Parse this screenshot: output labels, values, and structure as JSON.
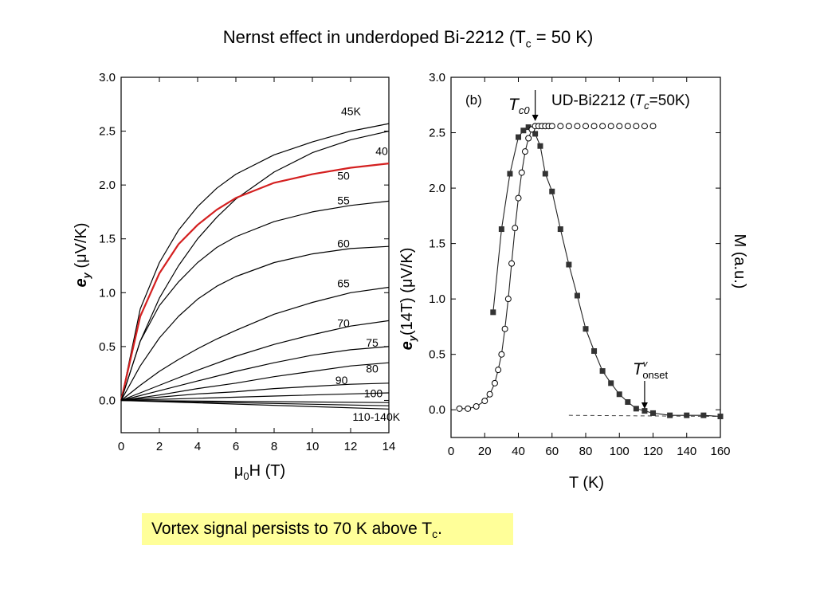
{
  "slide": {
    "title_main": "Nernst effect in underdoped Bi-2212 (T",
    "title_sub": "c",
    "title_tail": " = 50 K)",
    "caption_main": "Vortex signal persists to 70 K above T",
    "caption_sub": "c",
    "caption_tail": "."
  },
  "chart_data": [
    {
      "type": "line",
      "xlabel_pre": "μ",
      "xlabel_sub": "0",
      "xlabel_post": "H (T)",
      "ylabel_bold": "e",
      "ylabel_sub": "y",
      "ylabel_post": " (μV/K)",
      "xlim": [
        0,
        14
      ],
      "ylim": [
        -0.3,
        3.0
      ],
      "x_ticks": [
        "0",
        "2",
        "4",
        "6",
        "8",
        "10",
        "12",
        "14"
      ],
      "y_ticks": [
        "0.0",
        "0.5",
        "1.0",
        "1.5",
        "2.0",
        "2.5",
        "3.0"
      ],
      "highlight_color": "#d42020",
      "series": [
        {
          "name": "45K",
          "color": "#000000",
          "values": [
            [
              0,
              0
            ],
            [
              1,
              0.85
            ],
            [
              2,
              1.28
            ],
            [
              3,
              1.58
            ],
            [
              4,
              1.8
            ],
            [
              5,
              1.97
            ],
            [
              6,
              2.1
            ],
            [
              8,
              2.28
            ],
            [
              10,
              2.4
            ],
            [
              12,
              2.5
            ],
            [
              14,
              2.57
            ]
          ]
        },
        {
          "name": "40",
          "color": "#000000",
          "values": [
            [
              0,
              0
            ],
            [
              1,
              0.55
            ],
            [
              2,
              0.95
            ],
            [
              3,
              1.25
            ],
            [
              4,
              1.5
            ],
            [
              5,
              1.7
            ],
            [
              6,
              1.87
            ],
            [
              8,
              2.12
            ],
            [
              10,
              2.3
            ],
            [
              12,
              2.42
            ],
            [
              14,
              2.5
            ]
          ]
        },
        {
          "name": "50",
          "color": "#d42020",
          "values": [
            [
              0,
              0
            ],
            [
              1,
              0.78
            ],
            [
              2,
              1.18
            ],
            [
              3,
              1.45
            ],
            [
              4,
              1.63
            ],
            [
              5,
              1.77
            ],
            [
              6,
              1.88
            ],
            [
              8,
              2.02
            ],
            [
              10,
              2.1
            ],
            [
              12,
              2.16
            ],
            [
              14,
              2.2
            ]
          ]
        },
        {
          "name": "55",
          "color": "#000000",
          "values": [
            [
              0,
              0
            ],
            [
              1,
              0.55
            ],
            [
              2,
              0.88
            ],
            [
              3,
              1.1
            ],
            [
              4,
              1.28
            ],
            [
              5,
              1.42
            ],
            [
              6,
              1.52
            ],
            [
              8,
              1.66
            ],
            [
              10,
              1.75
            ],
            [
              12,
              1.81
            ],
            [
              14,
              1.85
            ]
          ]
        },
        {
          "name": "60",
          "color": "#000000",
          "values": [
            [
              0,
              0
            ],
            [
              1,
              0.32
            ],
            [
              2,
              0.58
            ],
            [
              3,
              0.78
            ],
            [
              4,
              0.94
            ],
            [
              5,
              1.06
            ],
            [
              6,
              1.15
            ],
            [
              8,
              1.28
            ],
            [
              10,
              1.36
            ],
            [
              12,
              1.41
            ],
            [
              14,
              1.43
            ]
          ]
        },
        {
          "name": "65",
          "color": "#000000",
          "values": [
            [
              0,
              0
            ],
            [
              1,
              0.14
            ],
            [
              2,
              0.27
            ],
            [
              3,
              0.38
            ],
            [
              4,
              0.48
            ],
            [
              5,
              0.57
            ],
            [
              6,
              0.65
            ],
            [
              8,
              0.8
            ],
            [
              10,
              0.91
            ],
            [
              12,
              1.0
            ],
            [
              14,
              1.05
            ]
          ]
        },
        {
          "name": "70",
          "color": "#000000",
          "values": [
            [
              0,
              0
            ],
            [
              2,
              0.14
            ],
            [
              4,
              0.28
            ],
            [
              6,
              0.41
            ],
            [
              8,
              0.52
            ],
            [
              10,
              0.61
            ],
            [
              12,
              0.69
            ],
            [
              14,
              0.74
            ]
          ]
        },
        {
          "name": "75",
          "color": "#000000",
          "values": [
            [
              0,
              0
            ],
            [
              2,
              0.09
            ],
            [
              4,
              0.18
            ],
            [
              6,
              0.27
            ],
            [
              8,
              0.35
            ],
            [
              10,
              0.42
            ],
            [
              12,
              0.47
            ],
            [
              14,
              0.5
            ]
          ]
        },
        {
          "name": "80",
          "color": "#000000",
          "values": [
            [
              0,
              0
            ],
            [
              2,
              0.05
            ],
            [
              4,
              0.11
            ],
            [
              6,
              0.16
            ],
            [
              8,
              0.22
            ],
            [
              10,
              0.27
            ],
            [
              12,
              0.32
            ],
            [
              14,
              0.35
            ]
          ]
        },
        {
          "name": "90",
          "color": "#000000",
          "values": [
            [
              0,
              0
            ],
            [
              2,
              0.03
            ],
            [
              4,
              0.06
            ],
            [
              6,
              0.08
            ],
            [
              8,
              0.11
            ],
            [
              10,
              0.13
            ],
            [
              12,
              0.15
            ],
            [
              14,
              0.16
            ]
          ]
        },
        {
          "name": "100",
          "color": "#000000",
          "values": [
            [
              0,
              0
            ],
            [
              4,
              0.02
            ],
            [
              8,
              0.04
            ],
            [
              12,
              0.06
            ],
            [
              14,
              0.07
            ]
          ]
        },
        {
          "name": "",
          "color": "#000000",
          "values": [
            [
              0,
              0
            ],
            [
              14,
              -0.02
            ]
          ]
        },
        {
          "name": "",
          "color": "#000000",
          "values": [
            [
              0,
              0
            ],
            [
              14,
              -0.05
            ]
          ]
        },
        {
          "name": "110-140K",
          "color": "#000000",
          "values": [
            [
              0,
              0
            ],
            [
              14,
              -0.08
            ]
          ]
        }
      ],
      "curve_labels": [
        {
          "text": "45K",
          "x": 11.5,
          "y": 2.65
        },
        {
          "text": "40",
          "x": 13.3,
          "y": 2.28
        },
        {
          "text": "50",
          "x": 11.3,
          "y": 2.05
        },
        {
          "text": "55",
          "x": 11.3,
          "y": 1.82
        },
        {
          "text": "60",
          "x": 11.3,
          "y": 1.42
        },
        {
          "text": "65",
          "x": 11.3,
          "y": 1.05
        },
        {
          "text": "70",
          "x": 11.3,
          "y": 0.68
        },
        {
          "text": "75",
          "x": 12.8,
          "y": 0.5
        },
        {
          "text": "80",
          "x": 12.8,
          "y": 0.26
        },
        {
          "text": "90",
          "x": 11.2,
          "y": 0.15
        },
        {
          "text": "100",
          "x": 12.7,
          "y": 0.03
        },
        {
          "text": "110-140K",
          "x": 12.1,
          "y": -0.19
        }
      ]
    },
    {
      "type": "scatter",
      "xlabel": "T (K)",
      "ylabel_bold": "e",
      "ylabel_sub": "y",
      "ylabel_post": "(14T) (μV/K)",
      "ylabel_right": "M (a.u.)",
      "xlim": [
        0,
        160
      ],
      "ylim": [
        -0.25,
        3.0
      ],
      "x_ticks": [
        "0",
        "20",
        "40",
        "60",
        "80",
        "100",
        "120",
        "140",
        "160"
      ],
      "y_ticks": [
        "0.0",
        "0.5",
        "1.0",
        "1.5",
        "2.0",
        "2.5",
        "3.0"
      ],
      "panel_label": "(b)",
      "legend_main": "UD-Bi2212 (",
      "legend_T": "T",
      "legend_sub": "c",
      "legend_tail": "=50K)",
      "tc0_T": "T",
      "tc0_sub": "c0",
      "tc0_x": 50,
      "tonset_T": "T",
      "tonset_sup": "v",
      "tonset_sub": "onset",
      "tonset_x": 115,
      "baseline": [
        [
          70,
          -0.05
        ],
        [
          160,
          -0.06
        ]
      ],
      "series": [
        {
          "name": "ey",
          "marker": "square",
          "color": "#333333",
          "values": [
            [
              25,
              0.88
            ],
            [
              30,
              1.63
            ],
            [
              35,
              2.13
            ],
            [
              40,
              2.46
            ],
            [
              43,
              2.52
            ],
            [
              46,
              2.55
            ],
            [
              50,
              2.49
            ],
            [
              53,
              2.38
            ],
            [
              56,
              2.13
            ],
            [
              60,
              1.97
            ],
            [
              65,
              1.63
            ],
            [
              70,
              1.31
            ],
            [
              75,
              1.03
            ],
            [
              80,
              0.73
            ],
            [
              85,
              0.53
            ],
            [
              90,
              0.35
            ],
            [
              95,
              0.24
            ],
            [
              100,
              0.14
            ],
            [
              105,
              0.07
            ],
            [
              110,
              0.01
            ],
            [
              115,
              -0.01
            ],
            [
              120,
              -0.03
            ],
            [
              130,
              -0.05
            ],
            [
              140,
              -0.05
            ],
            [
              150,
              -0.05
            ],
            [
              160,
              -0.06
            ]
          ]
        },
        {
          "name": "M",
          "marker": "circle",
          "color": "#000000",
          "values": [
            [
              5,
              0.01
            ],
            [
              10,
              0.01
            ],
            [
              15,
              0.03
            ],
            [
              20,
              0.08
            ],
            [
              23,
              0.14
            ],
            [
              26,
              0.24
            ],
            [
              28,
              0.36
            ],
            [
              30,
              0.5
            ],
            [
              32,
              0.73
            ],
            [
              34,
              1.0
            ],
            [
              36,
              1.32
            ],
            [
              38,
              1.64
            ],
            [
              40,
              1.91
            ],
            [
              42,
              2.14
            ],
            [
              44,
              2.33
            ],
            [
              46,
              2.45
            ],
            [
              48,
              2.53
            ],
            [
              50,
              2.56
            ],
            [
              52,
              2.56
            ],
            [
              54,
              2.56
            ],
            [
              56,
              2.56
            ],
            [
              58,
              2.56
            ],
            [
              60,
              2.56
            ],
            [
              65,
              2.56
            ],
            [
              70,
              2.56
            ],
            [
              75,
              2.56
            ],
            [
              80,
              2.56
            ],
            [
              85,
              2.56
            ],
            [
              90,
              2.56
            ],
            [
              95,
              2.56
            ],
            [
              100,
              2.56
            ],
            [
              105,
              2.56
            ],
            [
              110,
              2.56
            ],
            [
              115,
              2.56
            ],
            [
              120,
              2.56
            ]
          ]
        }
      ]
    }
  ]
}
